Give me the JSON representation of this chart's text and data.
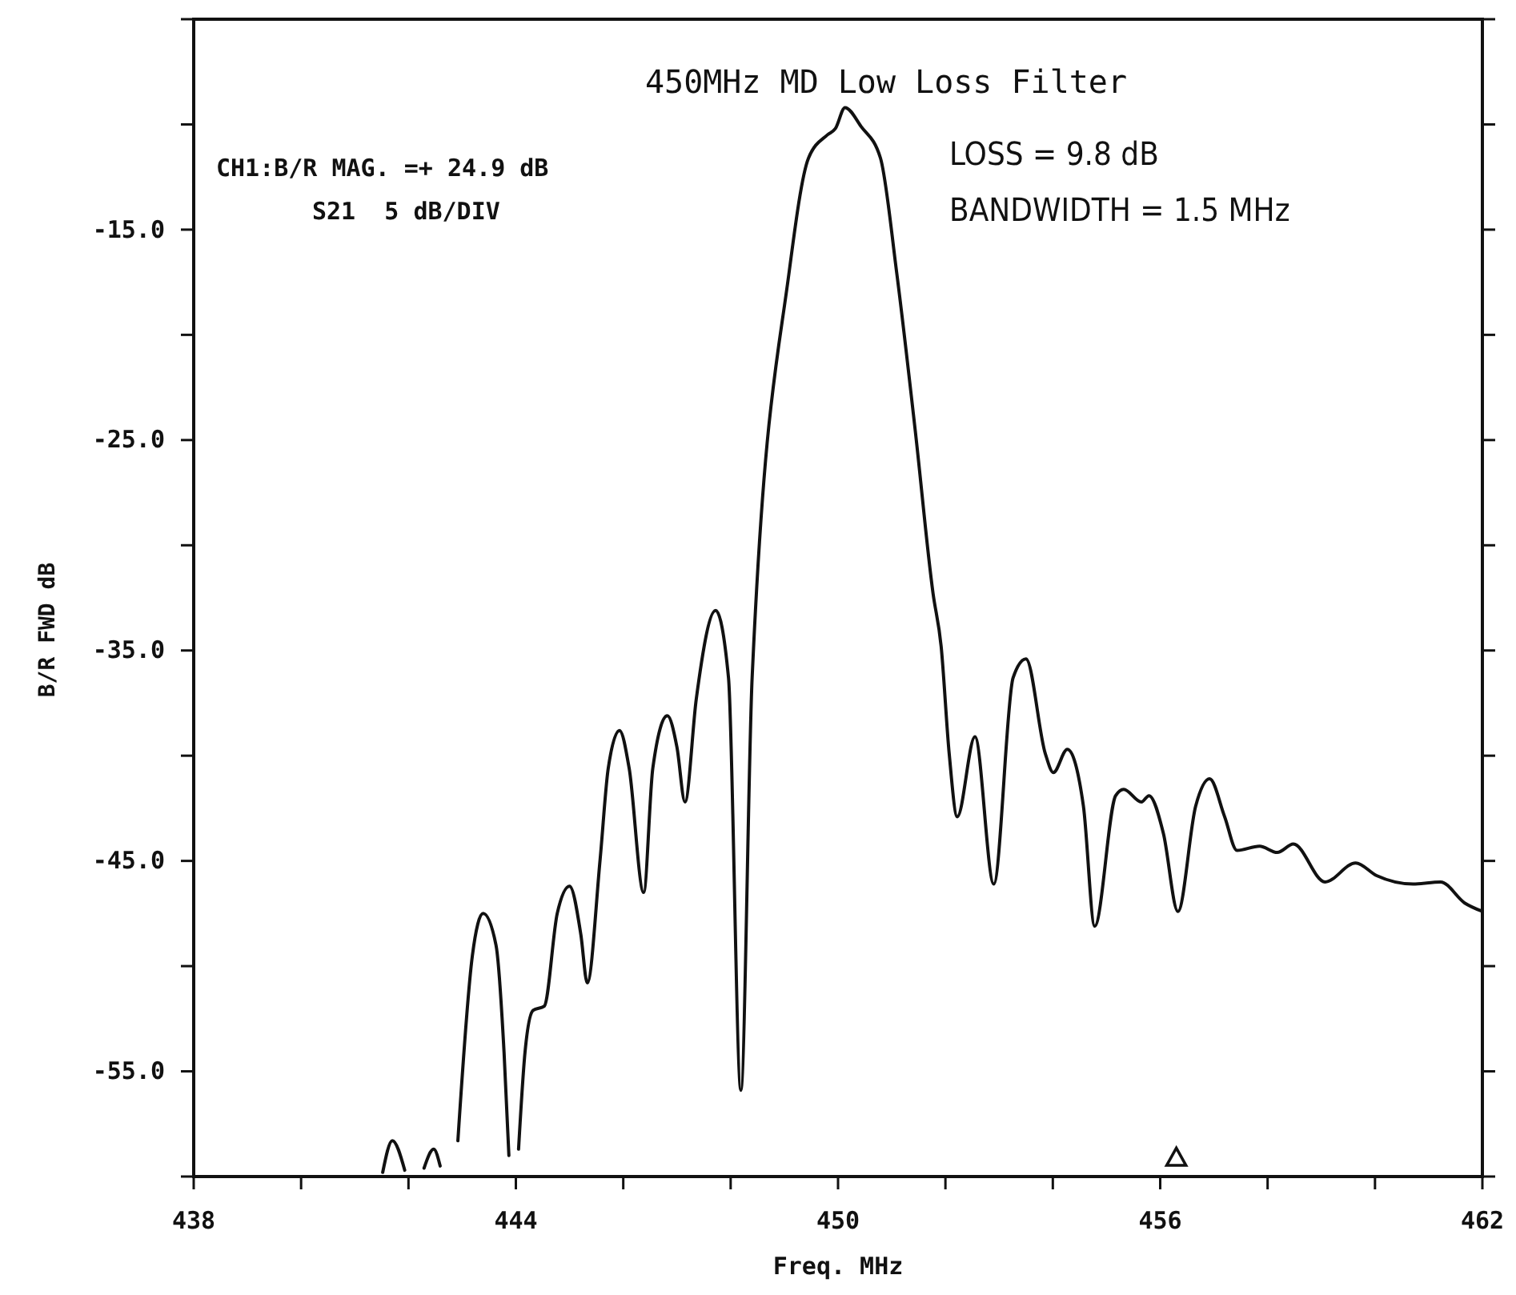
{
  "chart_data": {
    "type": "line",
    "title": "450MHz MD Low Loss Filter",
    "xlabel": "Freq. MHz",
    "ylabel": "B/R FWD dB",
    "annotations": [
      "CH1:B/R MAG. =+ 24.9 dB",
      "S21  5 dB/DIV",
      "LOSS = 9.8 dB",
      "BANDWIDTH = 1.5 MHz"
    ],
    "xlim": [
      438,
      462
    ],
    "ylim": [
      -60,
      -5
    ],
    "xticks": [
      438,
      {
        "value": 440,
        "label": null
      },
      {
        "value": 442,
        "label": null
      },
      444,
      {
        "value": 446,
        "label": null
      },
      {
        "value": 448,
        "label": null
      },
      450,
      {
        "value": 452,
        "label": null
      },
      {
        "value": 454,
        "label": null
      },
      456,
      {
        "value": 458,
        "label": null
      },
      {
        "value": 460,
        "label": null
      },
      462
    ],
    "yticks": [
      {
        "value": -60,
        "label": null
      },
      {
        "value": -55,
        "label": "-55.0"
      },
      {
        "value": -50,
        "label": null
      },
      {
        "value": -45,
        "label": "-45.0"
      },
      {
        "value": -40,
        "label": null
      },
      {
        "value": -35,
        "label": "-35.0"
      },
      {
        "value": -30,
        "label": null
      },
      {
        "value": -25,
        "label": "-25.0"
      },
      {
        "value": -20,
        "label": null
      },
      {
        "value": -15,
        "label": "-15.0"
      },
      {
        "value": -10,
        "label": null
      },
      {
        "value": -5,
        "label": null
      }
    ],
    "grid": false,
    "line_style": "solid",
    "marker": "none",
    "series": [
      {
        "color": "#111111",
        "x": [
          441.52,
          441.7,
          441.93,
          442.1,
          442.29,
          442.47,
          442.59,
          442.75,
          442.92,
          443.19,
          443.39,
          443.63,
          443.78,
          443.87,
          443.96,
          444.05,
          444.17,
          444.32,
          444.53,
          444.77,
          445.0,
          445.21,
          445.33,
          445.57,
          445.72,
          445.93,
          446.11,
          446.38,
          446.55,
          446.82,
          447.0,
          447.15,
          447.36,
          447.72,
          447.96,
          448.19,
          448.4,
          449.09,
          449.45,
          449.8,
          449.95,
          450.13,
          450.43,
          450.79,
          451.09,
          451.44,
          451.77,
          451.92,
          452.07,
          452.22,
          452.55,
          452.9,
          453.26,
          453.5,
          453.86,
          454.01,
          454.27,
          454.57,
          454.78,
          455.17,
          455.32,
          455.65,
          455.79,
          456.06,
          456.33,
          456.66,
          456.92,
          457.2,
          457.43,
          457.85,
          458.18,
          458.48,
          459.07,
          459.64,
          460.03,
          460.71,
          461.22,
          461.67,
          462.0
        ],
        "values": [
          -59.8,
          -58.3,
          -59.7,
          null,
          -59.6,
          -58.7,
          -59.5,
          null,
          -58.3,
          -49.5,
          -47.5,
          -49.0,
          -54.1,
          -59.0,
          null,
          -58.7,
          -54.1,
          -52.1,
          -51.9,
          -47.5,
          -46.2,
          -48.5,
          -50.8,
          -44.9,
          -40.6,
          -38.8,
          -40.6,
          -46.5,
          -40.6,
          -38.1,
          -39.6,
          -42.2,
          -37.3,
          -33.1,
          -36.3,
          -55.9,
          -36.3,
          -17.0,
          -11.6,
          -10.5,
          -10.2,
          -9.2,
          -10.1,
          -11.6,
          -17.0,
          -24.6,
          -32.3,
          -34.8,
          -39.9,
          -42.9,
          -39.1,
          -46.1,
          -36.3,
          -35.4,
          -39.9,
          -40.8,
          -39.7,
          -42.4,
          -48.1,
          -41.9,
          -41.6,
          -42.2,
          -41.9,
          -43.7,
          -47.4,
          -42.4,
          -41.1,
          -42.9,
          -44.5,
          -44.3,
          -44.6,
          -44.2,
          -46.0,
          -45.1,
          -45.7,
          -46.1,
          -46.0,
          -47.0,
          -47.4
        ]
      },
      {
        "type": "scatter",
        "color": "#111111",
        "marker": "triangle",
        "x": [
          456.3
        ],
        "values": [
          -59.1
        ]
      }
    ]
  }
}
